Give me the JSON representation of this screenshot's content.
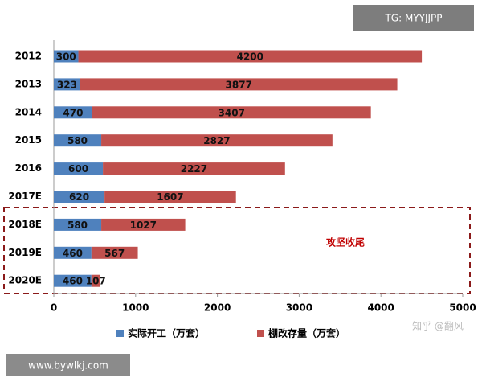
{
  "chart_data": {
    "type": "stacked-bar-horizontal",
    "categories": [
      "2012",
      "2013",
      "2014",
      "2015",
      "2016",
      "2017E",
      "2018E",
      "2019E",
      "2020E"
    ],
    "series": [
      {
        "name": "实际开工（万套）",
        "color": "#4f81bd",
        "values": [
          300,
          323,
          470,
          580,
          600,
          620,
          580,
          460,
          460
        ]
      },
      {
        "name": "棚改存量（万套）",
        "color": "#c0504d",
        "values": [
          4200,
          3877,
          3407,
          2827,
          2227,
          1607,
          1027,
          567,
          107
        ]
      }
    ],
    "xlim": [
      0,
      5000
    ],
    "xticks": [
      0,
      1000,
      2000,
      3000,
      4000,
      5000
    ],
    "annotation": "攻坚收尾",
    "highlight_color": "#8b1a1a"
  },
  "watermarks": [
    "TG: MYYJJPP",
    "www.bywlkj.com",
    "知乎 @翻风"
  ]
}
